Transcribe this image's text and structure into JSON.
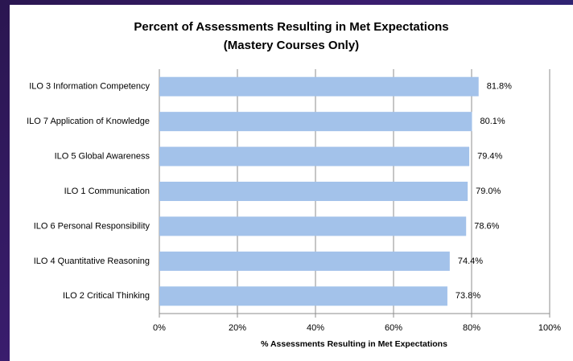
{
  "chart_data": {
    "type": "bar",
    "orientation": "horizontal",
    "title": "Percent of Assessments Resulting in Met Expectations",
    "subtitle": "(Mastery Courses Only)",
    "x_label": "% Assessments Resulting in Met Expectations",
    "categories": [
      "ILO 3 Information Competency",
      "ILO 7 Application of Knowledge",
      "ILO 5 Global Awareness",
      "ILO 1 Communication",
      "ILO 6 Personal Responsibility",
      "ILO 4 Quantitative Reasoning",
      "ILO 2 Critical Thinking"
    ],
    "values": [
      81.8,
      80.1,
      79.4,
      79.0,
      78.6,
      74.4,
      73.8
    ],
    "value_labels": [
      "81.8%",
      "80.1%",
      "79.4%",
      "79.0%",
      "78.6%",
      "74.4%",
      "73.8%"
    ],
    "color": "#a3c2ea",
    "xlim": [
      0,
      100
    ],
    "xticks": [
      {
        "value": 0,
        "label": "0%"
      },
      {
        "value": 20,
        "label": "20%"
      },
      {
        "value": 40,
        "label": "40%"
      },
      {
        "value": 60,
        "label": "60%"
      },
      {
        "value": 80,
        "label": "80%"
      },
      {
        "value": 100,
        "label": "100%"
      }
    ],
    "grid": true
  }
}
